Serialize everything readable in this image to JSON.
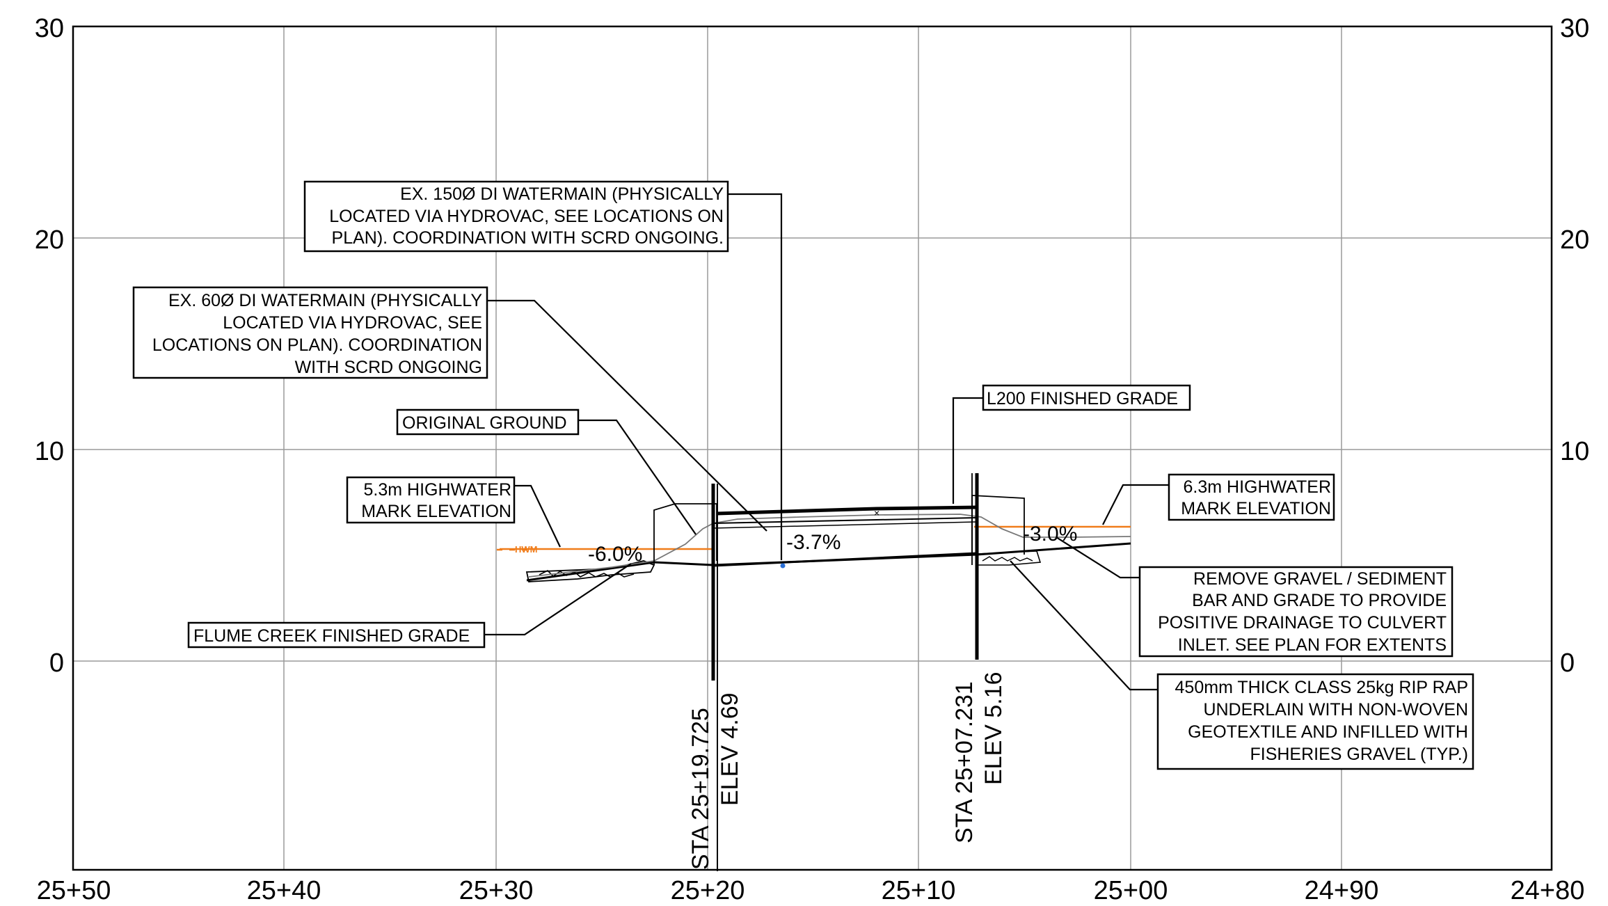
{
  "axes": {
    "x_ticks": [
      "25+50",
      "25+40",
      "25+30",
      "25+20",
      "25+10",
      "25+00",
      "24+90",
      "24+80"
    ],
    "y_ticks_left": [
      "30",
      "20",
      "10",
      "0"
    ],
    "y_ticks_right": [
      "30",
      "20",
      "10",
      "0"
    ]
  },
  "callouts": {
    "watermain_150": [
      "EX. 150Ø DI WATERMAIN (PHYSICALLY",
      "LOCATED VIA HYDROVAC, SEE LOCATIONS ON",
      "PLAN). COORDINATION WITH SCRD ONGOING."
    ],
    "watermain_60": [
      "EX. 60Ø DI WATERMAIN (PHYSICALLY",
      "LOCATED VIA HYDROVAC, SEE",
      "LOCATIONS ON PLAN). COORDINATION",
      "WITH SCRD ONGOING"
    ],
    "original_ground": "ORIGINAL GROUND",
    "l200": "L200 FINISHED GRADE",
    "hw_left": [
      "5.3m HIGHWATER",
      "MARK ELEVATION"
    ],
    "hw_right": [
      "6.3m HIGHWATER",
      "MARK ELEVATION"
    ],
    "remove_gravel": [
      "REMOVE GRAVEL / SEDIMENT",
      "BAR AND GRADE TO PROVIDE",
      "POSITIVE DRAINAGE TO CULVERT",
      "INLET. SEE PLAN FOR EXTENTS"
    ],
    "rip_rap": [
      "450mm THICK CLASS 25kg RIP RAP",
      "UNDERLAIN WITH NON-WOVEN",
      "GEOTEXTILE AND INFILLED WITH",
      "FISHERIES GRAVEL (TYP.)"
    ],
    "flume": "FLUME CREEK FINISHED GRADE"
  },
  "grades": {
    "left": "-6.0%",
    "middle": "-3.7%",
    "right": "-3.0%"
  },
  "hwm_tag": "HWM",
  "stations": {
    "inlet": {
      "sta": "STA  25+19.725",
      "elev": "ELEV 4.69"
    },
    "outlet": {
      "sta": "STA  25+07.231",
      "elev": "ELEV 5.16"
    }
  },
  "colors": {
    "grid": "#9a9a9a",
    "hwm_line": "#f07c1a",
    "pipe_marker": "#2a6fd6"
  }
}
